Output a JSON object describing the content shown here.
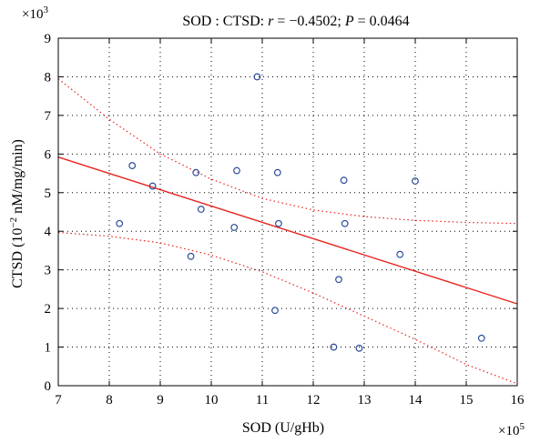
{
  "chart_data": {
    "type": "scatter",
    "title": {
      "prefix": "SOD : CTSD: ",
      "r_symbol": "r",
      "r_text": " = −0.4502; ",
      "p_symbol": "P",
      "p_text": " = 0.0464"
    },
    "xlabel": "SOD (U/gHb)",
    "ylabel": {
      "before": "CTSD (10",
      "exponent": "−2",
      "after": " nM/mg/min)"
    },
    "x_multiplier": {
      "base": "×10",
      "exponent": "5"
    },
    "y_multiplier": {
      "base": "×10",
      "exponent": "3"
    },
    "xlim": [
      7,
      16
    ],
    "ylim": [
      0,
      9
    ],
    "x_ticks": [
      7,
      8,
      9,
      10,
      11,
      12,
      13,
      14,
      15,
      16
    ],
    "y_ticks": [
      0,
      1,
      2,
      3,
      4,
      5,
      6,
      7,
      8,
      9
    ],
    "grid": true,
    "points": [
      {
        "x": 8.2,
        "y": 4.2
      },
      {
        "x": 8.45,
        "y": 5.7
      },
      {
        "x": 8.85,
        "y": 5.17
      },
      {
        "x": 9.6,
        "y": 3.35
      },
      {
        "x": 9.7,
        "y": 5.52
      },
      {
        "x": 9.8,
        "y": 4.57
      },
      {
        "x": 10.45,
        "y": 4.1
      },
      {
        "x": 10.5,
        "y": 5.57
      },
      {
        "x": 10.9,
        "y": 8.0
      },
      {
        "x": 11.25,
        "y": 1.95
      },
      {
        "x": 11.3,
        "y": 5.52
      },
      {
        "x": 11.32,
        "y": 4.2
      },
      {
        "x": 12.4,
        "y": 1.0
      },
      {
        "x": 12.5,
        "y": 2.75
      },
      {
        "x": 12.6,
        "y": 5.32
      },
      {
        "x": 12.62,
        "y": 4.2
      },
      {
        "x": 12.9,
        "y": 0.97
      },
      {
        "x": 13.7,
        "y": 3.4
      },
      {
        "x": 14.0,
        "y": 5.3
      },
      {
        "x": 15.3,
        "y": 1.23
      }
    ],
    "fit_line": {
      "x": [
        7,
        16
      ],
      "y": [
        5.92,
        2.12
      ]
    },
    "confidence_upper": {
      "x": [
        7,
        8,
        9,
        10,
        11,
        12,
        13,
        14,
        15,
        16
      ],
      "y": [
        7.95,
        6.9,
        6.0,
        5.35,
        4.85,
        4.55,
        4.38,
        4.28,
        4.23,
        4.2
      ]
    },
    "confidence_lower": {
      "x": [
        7,
        8,
        9,
        10,
        11,
        12,
        13,
        14,
        15,
        16
      ],
      "y": [
        3.97,
        3.87,
        3.7,
        3.38,
        2.95,
        2.4,
        1.8,
        1.2,
        0.55,
        0.05
      ]
    },
    "colors": {
      "points": "#2b4c9a",
      "fit": "#e8231f",
      "confidence": "#e8231f",
      "grid": "#000000"
    }
  }
}
